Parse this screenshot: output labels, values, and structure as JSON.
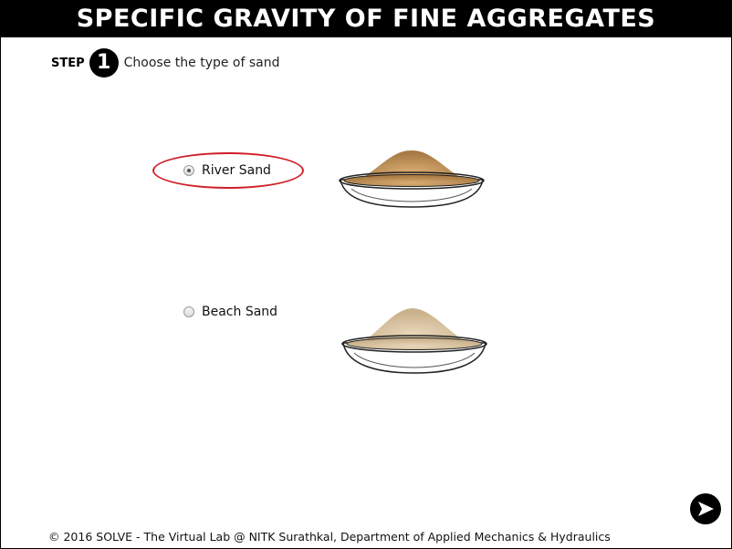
{
  "header": {
    "title": "SPECIFIC GRAVITY OF FINE AGGREGATES"
  },
  "step": {
    "label": "STEP",
    "number": "1",
    "instruction": "Choose the type of sand"
  },
  "options": [
    {
      "label": "River Sand",
      "selected": true,
      "highlighted": true,
      "sand_color": "#c79a62"
    },
    {
      "label": "Beach Sand",
      "selected": false,
      "highlighted": false,
      "sand_color": "#dcc7a6"
    }
  ],
  "colors": {
    "title_bar": "#000000",
    "highlight": "#d0202a"
  },
  "navigation": {
    "next_icon": "arrow-right-circle-icon"
  },
  "footer": {
    "text": "© 2016 SOLVE - The Virtual Lab @ NITK Surathkal, Department of Applied Mechanics & Hydraulics"
  }
}
